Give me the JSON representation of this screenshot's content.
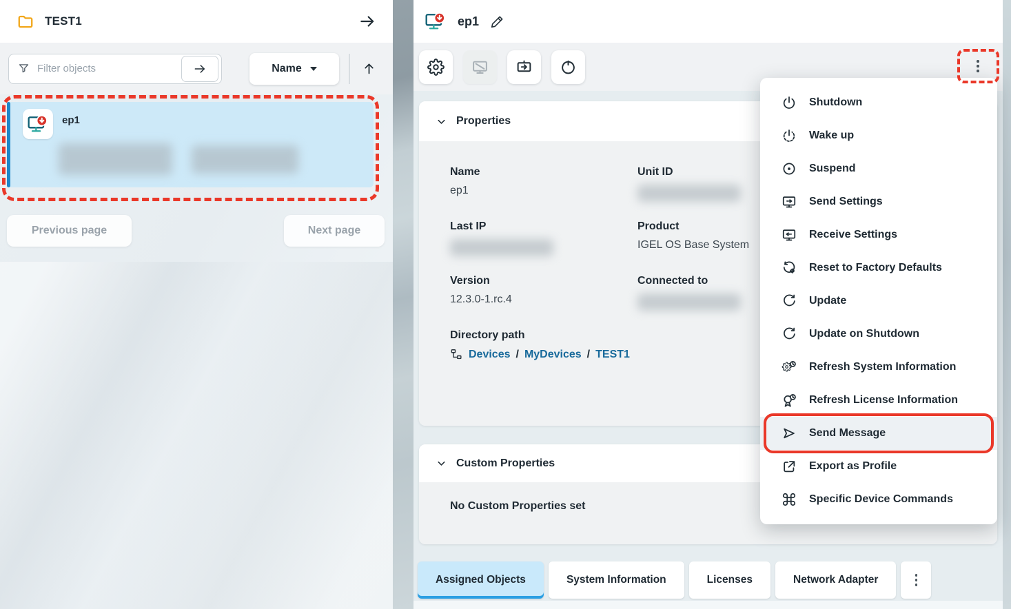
{
  "left_panel": {
    "header": {
      "title": "TEST1",
      "folder_icon": "folder-icon",
      "collapse_icon": "arrow-right-icon"
    },
    "filter": {
      "placeholder": "Filter objects",
      "filter_icon": "funnel-icon",
      "submit_icon": "arrow-right-icon"
    },
    "sort": {
      "label": "Name",
      "caret_icon": "caret-down-icon",
      "direction_icon": "arrow-up-icon"
    },
    "devices": [
      {
        "name": "ep1",
        "icon": "device-endpoint-icon",
        "selected": true,
        "redacted_details": true
      }
    ],
    "pagination": {
      "previous_label": "Previous page",
      "next_label": "Next page"
    }
  },
  "right_panel": {
    "header": {
      "title": "ep1",
      "device_icon": "device-endpoint-icon",
      "edit_icon": "pencil-icon"
    },
    "toolbar": {
      "buttons": [
        {
          "name": "settings-button",
          "icon": "gear-icon",
          "disabled": false
        },
        {
          "name": "shadowing-button",
          "icon": "monitor-off-icon",
          "disabled": true
        },
        {
          "name": "boot-button",
          "icon": "box-arrow-right-icon",
          "disabled": false
        },
        {
          "name": "power-button",
          "icon": "restart-icon",
          "disabled": false
        }
      ],
      "more_icon": "kebab-menu-icon"
    },
    "properties": {
      "title": "Properties",
      "collapse_icon": "chevron-down-icon",
      "fields": [
        {
          "label": "Name",
          "value": "ep1"
        },
        {
          "label": "Unit ID",
          "redacted": true
        },
        {
          "label": "Last IP",
          "redacted": true
        },
        {
          "label": "Product",
          "value": "IGEL OS Base System"
        },
        {
          "label": "Version",
          "value": "12.3.0-1.rc.4"
        },
        {
          "label": "Connected to",
          "redacted": true
        },
        {
          "label": "Directory path",
          "breadcrumb": [
            "Devices",
            "MyDevices",
            "TEST1"
          ],
          "breadcrumb_icon": "tree-icon",
          "separator": "/"
        }
      ]
    },
    "custom_properties": {
      "title": "Custom Properties",
      "collapse_icon": "chevron-down-icon",
      "empty_text": "No Custom Properties set"
    },
    "tabs": [
      {
        "label": "Assigned Objects",
        "active": true
      },
      {
        "label": "System Information",
        "active": false
      },
      {
        "label": "Licenses",
        "active": false
      },
      {
        "label": "Network Adapter",
        "active": false
      }
    ],
    "tabs_more_icon": "kebab-menu-icon"
  },
  "context_menu": {
    "items": [
      {
        "label": "Shutdown",
        "icon": "power-icon"
      },
      {
        "label": "Wake up",
        "icon": "wake-up-icon"
      },
      {
        "label": "Suspend",
        "icon": "suspend-icon"
      },
      {
        "label": "Send Settings",
        "icon": "monitor-arrow-right-icon"
      },
      {
        "label": "Receive Settings",
        "icon": "monitor-arrow-left-icon"
      },
      {
        "label": "Reset to Factory Defaults",
        "icon": "reset-factory-icon"
      },
      {
        "label": "Update",
        "icon": "refresh-icon"
      },
      {
        "label": "Update on Shutdown",
        "icon": "refresh-icon"
      },
      {
        "label": "Refresh System Information",
        "icon": "gear-clock-icon"
      },
      {
        "label": "Refresh License Information",
        "icon": "badge-clock-icon"
      },
      {
        "label": "Send Message",
        "icon": "send-icon",
        "highlighted": true
      },
      {
        "label": "Export as Profile",
        "icon": "export-icon"
      },
      {
        "label": "Specific Device Commands",
        "icon": "command-icon"
      }
    ]
  },
  "annotations": {
    "color": "#ea3829",
    "highlighted_regions": [
      "selected-device-item",
      "more-menu-button",
      "send-message-menu-item"
    ]
  },
  "colors": {
    "selection_blue": "#cde9f8",
    "selection_bar": "#1d87c8",
    "active_tab_blue": "#c9e9fb",
    "tab_underline": "#2b9fe3",
    "link_blue": "#186a9b",
    "annotation_red": "#ea3829",
    "device_badge_red": "#d7332a",
    "panel_gray": "#f0f2f4"
  }
}
